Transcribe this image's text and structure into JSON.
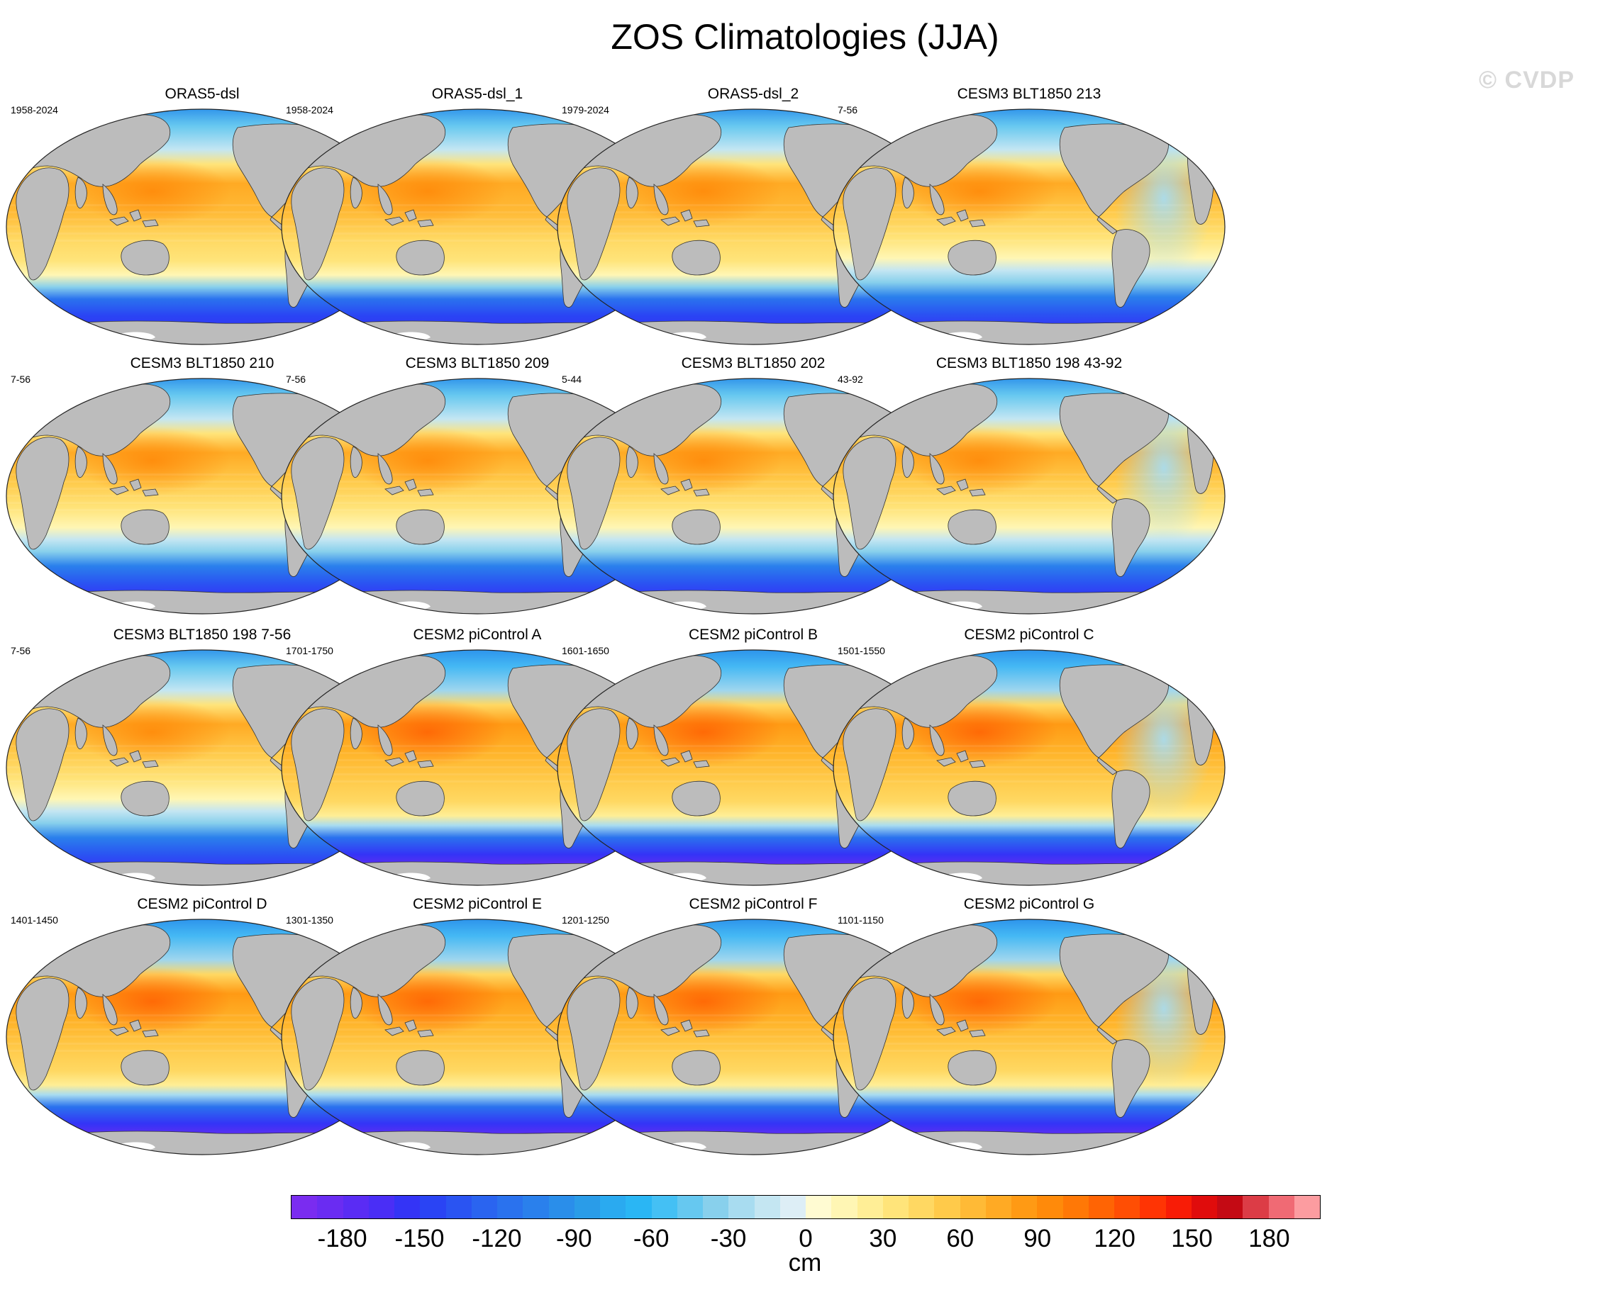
{
  "title": "ZOS Climatologies (JJA)",
  "watermark": "© CVDP",
  "units": "cm",
  "colors": {
    "land": "#bcbcbc",
    "antarctic_ice": "#ffffff",
    "outline": "#333333"
  },
  "panels": [
    {
      "title": "ORAS5-dsl",
      "period": "1958-2024",
      "style": "reanalysis"
    },
    {
      "title": "ORAS5-dsl_1",
      "period": "1958-2024",
      "style": "reanalysis"
    },
    {
      "title": "ORAS5-dsl_2",
      "period": "1979-2024",
      "style": "reanalysis"
    },
    {
      "title": "CESM3 BLT1850 213",
      "period": "7-56",
      "style": "cesm3"
    },
    {
      "title": "CESM3 BLT1850 210",
      "period": "7-56",
      "style": "cesm3"
    },
    {
      "title": "CESM3 BLT1850 209",
      "period": "7-56",
      "style": "cesm3"
    },
    {
      "title": "CESM3 BLT1850 202",
      "period": "5-44",
      "style": "cesm3"
    },
    {
      "title": "CESM3 BLT1850 198 43-92",
      "period": "43-92",
      "style": "cesm3"
    },
    {
      "title": "CESM3 BLT1850 198 7-56",
      "period": "7-56",
      "style": "cesm3"
    },
    {
      "title": "CESM2 piControl A",
      "period": "1701-1750",
      "style": "cesm2"
    },
    {
      "title": "CESM2 piControl B",
      "period": "1601-1650",
      "style": "cesm2"
    },
    {
      "title": "CESM2 piControl C",
      "period": "1501-1550",
      "style": "cesm2"
    },
    {
      "title": "CESM2 piControl D",
      "period": "1401-1450",
      "style": "cesm2"
    },
    {
      "title": "CESM2 piControl E",
      "period": "1301-1350",
      "style": "cesm2"
    },
    {
      "title": "CESM2 piControl F",
      "period": "1201-1250",
      "style": "cesm2"
    },
    {
      "title": "CESM2 piControl G",
      "period": "1101-1150",
      "style": "cesm2"
    }
  ],
  "colorbar": {
    "min": -200,
    "max": 200,
    "step": 10,
    "tick_labels": [
      "-180",
      "-150",
      "-120",
      "-90",
      "-60",
      "-30",
      "0",
      "30",
      "60",
      "90",
      "120",
      "150",
      "180"
    ],
    "tick_values": [
      -180,
      -150,
      -120,
      -90,
      -60,
      -30,
      0,
      30,
      60,
      90,
      120,
      150,
      180
    ],
    "colors": [
      "#7a2cf0",
      "#6a2cf2",
      "#5a2cf4",
      "#4a2ef6",
      "#3434f6",
      "#2a44f4",
      "#2a54f2",
      "#2a64f0",
      "#2a72ee",
      "#2a80ec",
      "#2a8eea",
      "#2a9ce8",
      "#2aaaf0",
      "#2ab6f4",
      "#44c0f4",
      "#66c8f0",
      "#88d0ec",
      "#a8dcf0",
      "#c4e6f2",
      "#ddeef6",
      "#fffbd2",
      "#fff6b4",
      "#ffee96",
      "#ffe47a",
      "#ffd862",
      "#ffca4a",
      "#ffba36",
      "#ffaa24",
      "#ff9a14",
      "#ff8a0a",
      "#ff7806",
      "#ff6404",
      "#ff4e04",
      "#ff3404",
      "#f81c06",
      "#e00c0c",
      "#c40a14",
      "#dc3c46",
      "#f06a74",
      "#fc9ca0"
    ]
  }
}
